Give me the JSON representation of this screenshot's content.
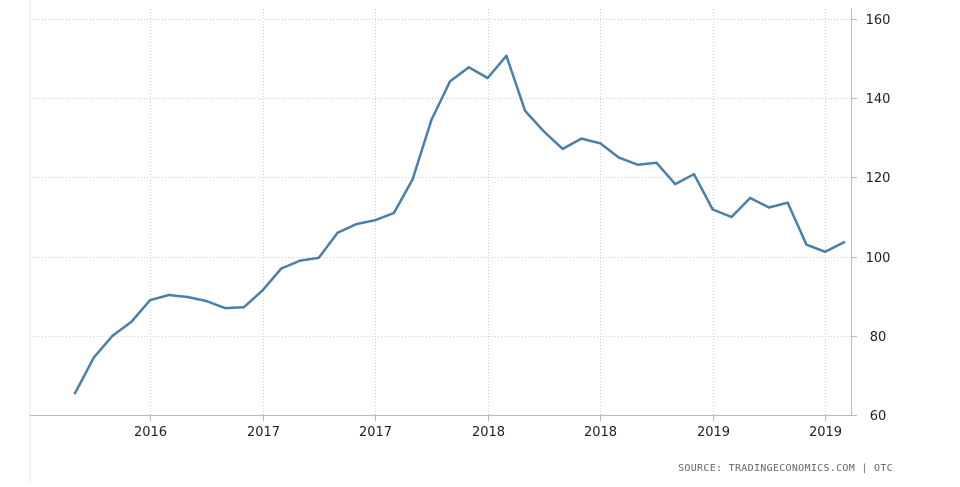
{
  "chart_data": {
    "type": "line",
    "title": "",
    "xlabel": "",
    "ylabel": "",
    "ylim": [
      60,
      160
    ],
    "y_ticks": [
      60,
      80,
      100,
      120,
      140,
      160
    ],
    "x_tick_labels": [
      "2016",
      "2017",
      "2017",
      "2018",
      "2018",
      "2019",
      "2019"
    ],
    "grid": true,
    "legend": "none",
    "series": [
      {
        "color": "#4a7fab",
        "values": [
          65.5,
          74.5,
          80.0,
          83.5,
          89.0,
          90.3,
          89.8,
          88.8,
          87.0,
          87.2,
          91.5,
          97.0,
          99.0,
          99.7,
          106.0,
          108.2,
          109.2,
          111.0,
          119.5,
          134.5,
          144.3,
          147.8,
          145.1,
          150.7,
          136.8,
          131.6,
          127.2,
          129.8,
          128.6,
          125.0,
          123.2,
          123.7,
          118.3,
          120.8,
          111.9,
          110.0,
          114.8,
          112.4,
          113.6,
          103.0,
          101.2,
          103.6
        ]
      }
    ]
  },
  "footer": {
    "source": "SOURCE: TRADINGECONOMICS.COM | OTC"
  }
}
